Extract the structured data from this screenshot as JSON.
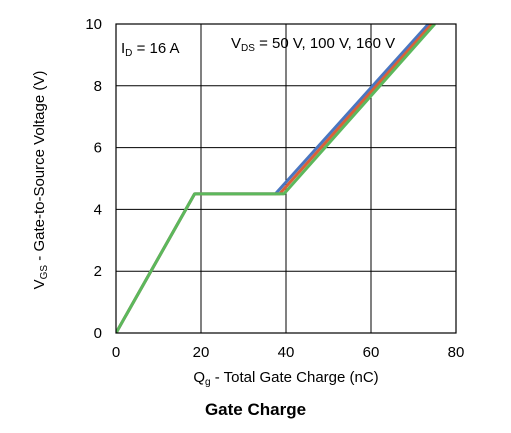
{
  "caption": "Gate Charge",
  "chart_data": {
    "type": "line",
    "xlabel": {
      "main": "Q",
      "sub": "g",
      "rest": " - Total Gate Charge (nC)"
    },
    "ylabel": {
      "main": "V",
      "sub": "GS",
      "rest": " - Gate-to-Source Voltage (V)"
    },
    "xlim": [
      0,
      80
    ],
    "ylim": [
      0,
      10
    ],
    "xticks": [
      "0",
      "20",
      "40",
      "60",
      "80"
    ],
    "yticks": [
      "0",
      "2",
      "4",
      "6",
      "8",
      "10"
    ],
    "grid": true,
    "annotations": [
      {
        "id": "id",
        "main": "I",
        "sub": "D",
        "rest": " = 16 A"
      },
      {
        "id": "vds",
        "main": "V",
        "sub": "DS",
        "rest": " = 50 V, 100 V, 160 V"
      }
    ],
    "series": [
      {
        "color": "#4a76c1",
        "x": [
          0,
          18.5,
          37.5,
          73.5
        ],
        "y": [
          0,
          4.5,
          4.5,
          10
        ]
      },
      {
        "color": "#d9603a",
        "x": [
          0,
          18.5,
          38.5,
          74.3
        ],
        "y": [
          0,
          4.5,
          4.5,
          10
        ]
      },
      {
        "color": "#5cb85c",
        "x": [
          0,
          18.5,
          39.5,
          75.0
        ],
        "y": [
          0,
          4.5,
          4.5,
          10
        ]
      }
    ]
  }
}
